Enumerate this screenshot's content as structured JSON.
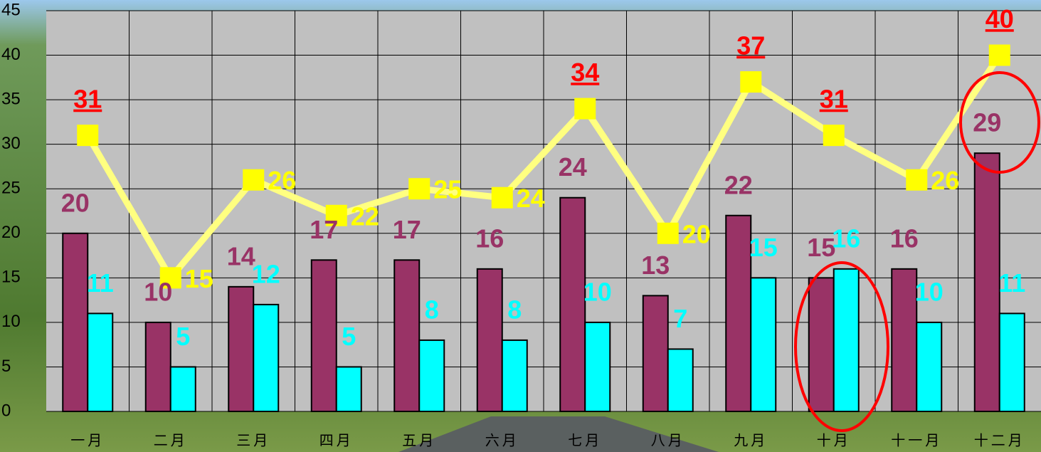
{
  "chart_data": {
    "type": "bar-line",
    "categories": [
      "一月",
      "二月",
      "三月",
      "四月",
      "五月",
      "六月",
      "七月",
      "八月",
      "九月",
      "十月",
      "十一月",
      "十二月"
    ],
    "series": [
      {
        "type": "bar",
        "color": "#993366",
        "label_color": "#993366",
        "values": [
          20,
          10,
          14,
          17,
          17,
          16,
          24,
          13,
          22,
          15,
          16,
          29
        ]
      },
      {
        "type": "bar",
        "color": "#00ffff",
        "label_color": "#00ffff",
        "values": [
          11,
          5,
          12,
          5,
          8,
          8,
          10,
          7,
          15,
          16,
          10,
          11
        ]
      },
      {
        "type": "line",
        "color": "#ffff00",
        "label_color": "#ffff00",
        "emphasis_color": "#ff0000",
        "label_emphasis": [
          true,
          false,
          false,
          false,
          false,
          false,
          true,
          false,
          true,
          true,
          false,
          true
        ],
        "values": [
          31,
          15,
          26,
          22,
          25,
          24,
          34,
          20,
          37,
          31,
          26,
          40
        ]
      }
    ],
    "ylim": [
      0,
      45
    ],
    "yticks": [
      0,
      5,
      10,
      15,
      20,
      25,
      30,
      35,
      40,
      45
    ],
    "grid": true
  }
}
